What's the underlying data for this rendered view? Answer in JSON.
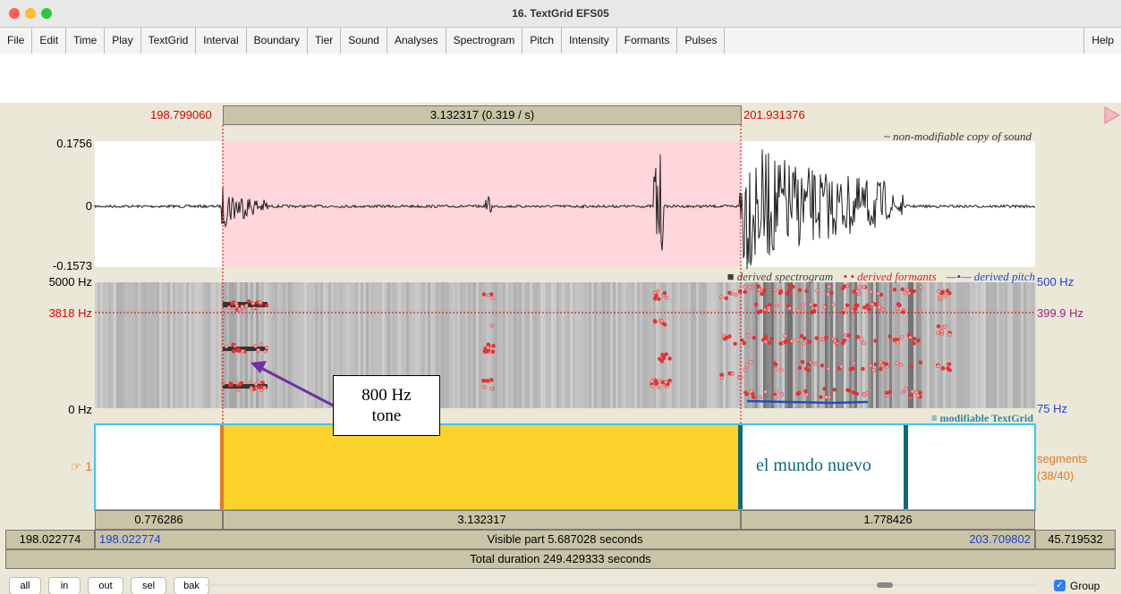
{
  "window": {
    "title": "16. TextGrid EFS05"
  },
  "menu": [
    "File",
    "Edit",
    "Time",
    "Play",
    "TextGrid",
    "Interval",
    "Boundary",
    "Tier",
    "Sound",
    "Analyses",
    "Spectrogram",
    "Pitch",
    "Intensity",
    "Formants",
    "Pulses"
  ],
  "help": "Help",
  "selection": {
    "start": "198.799060",
    "duration": "3.132317 (0.319 / s)",
    "end": "201.931376"
  },
  "waveform": {
    "note": "~ non-modifiable copy of sound",
    "max": "0.1756",
    "zero": "0",
    "min": "-0.1573"
  },
  "spectrogram": {
    "legend": [
      "■ derived spectrogram",
      "• • derived formants",
      "—•— derived pitch"
    ],
    "top": "5000 Hz",
    "cursor": "3818 Hz",
    "bottom": "0 Hz",
    "pitch_top": "500 Hz",
    "pitch_cursor": "399.9 Hz",
    "pitch_bottom": "75 Hz"
  },
  "annotation": "800 Hz tone",
  "tier": {
    "note": "≡ modifiable TextGrid",
    "number": "☞ 1",
    "interval_text": "el mundo nuevo",
    "name": "segments",
    "count": "(38/40)"
  },
  "durations": [
    "0.776286",
    "3.132317",
    "1.778426"
  ],
  "visible": {
    "window_start": "198.022774",
    "start": "198.022774",
    "label": "Visible part 5.687028 seconds",
    "end": "203.709802",
    "after": "45.719532"
  },
  "total": "Total duration 249.429333 seconds",
  "buttons": [
    "all",
    "in",
    "out",
    "sel",
    "bak"
  ],
  "group": "Group"
}
